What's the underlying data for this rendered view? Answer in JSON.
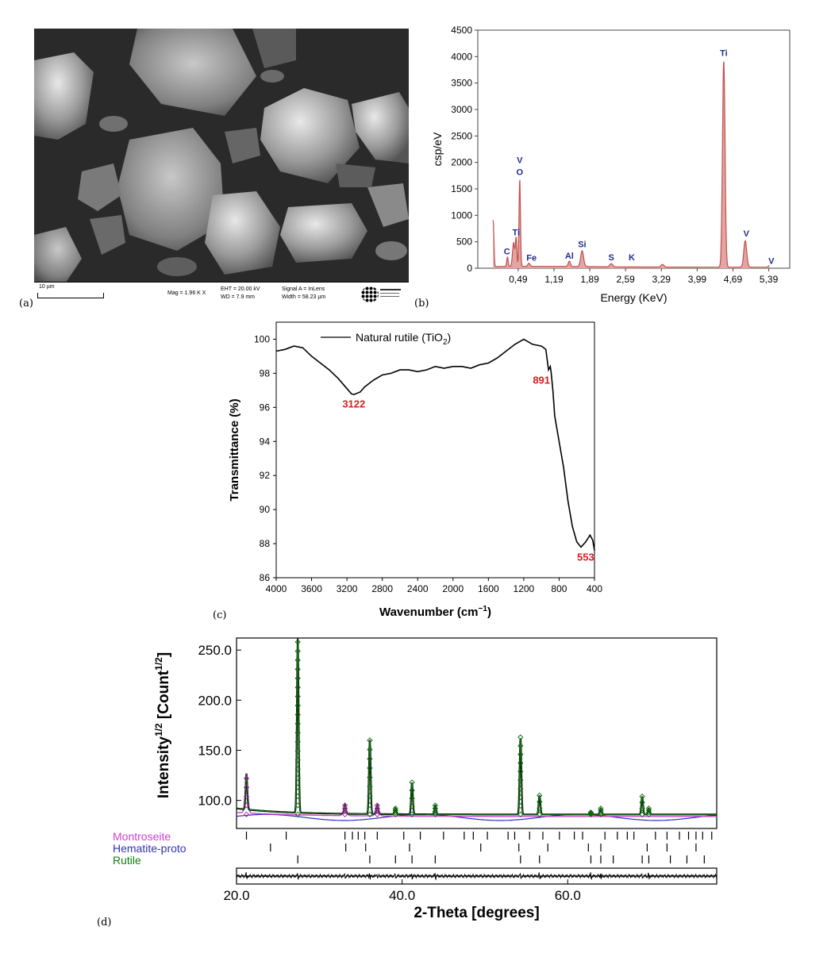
{
  "panel_labels": {
    "a": "(a)",
    "b": "(b)",
    "c": "(c)",
    "d": "(d)"
  },
  "sem": {
    "scale_label": "10 µm",
    "mag": "Mag =   1.96 K X",
    "eht": "EHT = 20.00 kV",
    "wd": "WD = 7.9 mm",
    "signal": "Signal A = InLens",
    "width": "Width = 58.23 µm"
  },
  "chart_data": [
    {
      "id": "eds",
      "type": "line",
      "xlabel": "Energy (KeV)",
      "ylabel": "csp/eV",
      "xlim": [
        -0.3,
        5.8
      ],
      "ylim": [
        0,
        4500
      ],
      "yticks": [
        0,
        500,
        1000,
        1500,
        2000,
        2500,
        3000,
        3500,
        4000,
        4500
      ],
      "xticks": [
        0.49,
        1.19,
        1.89,
        2.59,
        3.29,
        3.99,
        4.69,
        5.39
      ],
      "xtick_labels": [
        "0,49",
        "1,19",
        "1,89",
        "2,59",
        "3,29",
        "3,99",
        "4,69",
        "5,39"
      ],
      "color": "#c0504d",
      "peaks": [
        {
          "e": 0.0,
          "h": 880,
          "w": 0.02
        },
        {
          "e": 0.28,
          "h": 180,
          "w": 0.02
        },
        {
          "e": 0.4,
          "h": 450,
          "w": 0.03
        },
        {
          "e": 0.45,
          "h": 530,
          "w": 0.02
        },
        {
          "e": 0.52,
          "h": 1650,
          "w": 0.02
        },
        {
          "e": 0.7,
          "h": 60,
          "w": 0.03
        },
        {
          "e": 1.49,
          "h": 100,
          "w": 0.03
        },
        {
          "e": 1.74,
          "h": 300,
          "w": 0.04
        },
        {
          "e": 2.31,
          "h": 60,
          "w": 0.04
        },
        {
          "e": 3.31,
          "h": 50,
          "w": 0.04
        },
        {
          "e": 4.51,
          "h": 3900,
          "w": 0.035
        },
        {
          "e": 4.93,
          "h": 500,
          "w": 0.04
        },
        {
          "e": 5.43,
          "h": 60,
          "w": 0.04
        }
      ],
      "annotations": [
        {
          "text": "C",
          "e": 0.27,
          "y": 200
        },
        {
          "text": "Ti",
          "e": 0.45,
          "y": 560
        },
        {
          "text": "V",
          "e": 0.52,
          "y": 1930
        },
        {
          "text": "O",
          "e": 0.52,
          "y": 1700
        },
        {
          "text": "Fe",
          "e": 0.75,
          "y": 80
        },
        {
          "text": "Al",
          "e": 1.49,
          "y": 120
        },
        {
          "text": "Si",
          "e": 1.74,
          "y": 340
        },
        {
          "text": "S",
          "e": 2.31,
          "y": 90
        },
        {
          "text": "K",
          "e": 2.71,
          "y": 90
        },
        {
          "text": "Ti",
          "e": 4.51,
          "y": 3950
        },
        {
          "text": "V",
          "e": 4.95,
          "y": 540
        },
        {
          "text": "V",
          "e": 5.44,
          "y": 20
        }
      ]
    },
    {
      "id": "ftir",
      "type": "line",
      "xlabel": "Wavenumber (cm",
      "xlabel_sup": "−1",
      "xlabel_end": ")",
      "ylabel": "Transmittance (%)",
      "xlim": [
        4000,
        400
      ],
      "ylim": [
        86,
        101
      ],
      "xticks": [
        4000,
        3600,
        3200,
        2800,
        2400,
        2000,
        1600,
        1200,
        800,
        400
      ],
      "yticks": [
        86,
        88,
        90,
        92,
        94,
        96,
        98,
        100
      ],
      "legend": "Natural rutile (TiO",
      "legend_sub": "2",
      "legend_end": ")",
      "series": {
        "x": [
          4000,
          3900,
          3800,
          3700,
          3600,
          3500,
          3400,
          3300,
          3200,
          3150,
          3122,
          3050,
          3000,
          2900,
          2800,
          2700,
          2600,
          2500,
          2400,
          2300,
          2200,
          2100,
          2000,
          1900,
          1800,
          1700,
          1600,
          1500,
          1400,
          1300,
          1200,
          1100,
          1000,
          950,
          920,
          900,
          891,
          870,
          850,
          800,
          750,
          700,
          650,
          600,
          553,
          500,
          450,
          420,
          400
        ],
        "y": [
          99.3,
          99.4,
          99.6,
          99.5,
          99.0,
          98.6,
          98.2,
          97.7,
          97.1,
          96.8,
          96.75,
          96.9,
          97.2,
          97.6,
          97.9,
          98.0,
          98.2,
          98.2,
          98.1,
          98.2,
          98.4,
          98.3,
          98.4,
          98.4,
          98.3,
          98.5,
          98.6,
          98.9,
          99.3,
          99.7,
          100.0,
          99.7,
          99.6,
          99.4,
          98.2,
          98.4,
          98.1,
          97.0,
          95.5,
          94.0,
          92.5,
          90.5,
          89.0,
          88.1,
          87.8,
          88.1,
          88.5,
          88.2,
          87.6
        ]
      },
      "annotations": [
        {
          "text": "3122",
          "x": 3122,
          "y": 96.0
        },
        {
          "text": "891",
          "x": 1000,
          "y": 97.4
        },
        {
          "text": "553",
          "x": 500,
          "y": 87.0
        }
      ],
      "annotation_color": "#d42020"
    },
    {
      "id": "xrd",
      "type": "line",
      "xlabel": "2-Theta [degrees]",
      "ylabel": "Intensity",
      "ylabel_sup1": "1/2",
      "ylabel_mid": " [Count",
      "ylabel_sup2": "1/2",
      "ylabel_end": "]",
      "xlim": [
        20,
        78
      ],
      "ylim": [
        72,
        262
      ],
      "xticks": [
        20,
        40,
        60
      ],
      "xtick_labels": [
        "20.0",
        "40.0",
        "60.0"
      ],
      "yticks": [
        100,
        150,
        200,
        250
      ],
      "ytick_labels": [
        "100.0",
        "150.0",
        "200.0",
        "250.0"
      ],
      "background": 86,
      "peaks": [
        {
          "x": 21.2,
          "h": 122,
          "phase": "Montroseite"
        },
        {
          "x": 27.4,
          "h": 260,
          "phase": "Rutile"
        },
        {
          "x": 33.1,
          "h": 95,
          "phase": "Montroseite"
        },
        {
          "x": 36.1,
          "h": 160,
          "phase": "Rutile"
        },
        {
          "x": 37.0,
          "h": 95,
          "phase": "Montroseite"
        },
        {
          "x": 39.2,
          "h": 92,
          "phase": "Rutile"
        },
        {
          "x": 41.2,
          "h": 118,
          "phase": "Rutile"
        },
        {
          "x": 44.0,
          "h": 95,
          "phase": "Rutile"
        },
        {
          "x": 54.3,
          "h": 163,
          "phase": "Rutile"
        },
        {
          "x": 56.6,
          "h": 105,
          "phase": "Rutile"
        },
        {
          "x": 62.8,
          "h": 88,
          "phase": "Rutile"
        },
        {
          "x": 64.0,
          "h": 92,
          "phase": "Rutile"
        },
        {
          "x": 69.0,
          "h": 104,
          "phase": "Rutile"
        },
        {
          "x": 69.8,
          "h": 92,
          "phase": "Rutile"
        }
      ],
      "phases": [
        {
          "name": "Montroseite",
          "color": "#d040d0",
          "ticks": [
            21.2,
            26.0,
            33.1,
            34.0,
            34.7,
            35.5,
            37.0,
            40.2,
            42.2,
            45.0,
            47.5,
            48.6,
            50.3,
            52.8,
            53.6,
            55.4,
            57.0,
            59.0,
            60.8,
            61.8,
            64.5,
            66.0,
            67.2,
            68.0,
            70.6,
            72.0,
            73.5,
            74.6,
            75.5,
            76.3,
            77.4
          ]
        },
        {
          "name": "Hematite-proto",
          "color": "#3030c0",
          "ticks": [
            24.1,
            33.2,
            35.6,
            40.9,
            49.5,
            54.1,
            57.6,
            62.5,
            64.0,
            69.6,
            72.0,
            75.5
          ]
        },
        {
          "name": "Rutile",
          "color": "#108010",
          "ticks": [
            27.4,
            36.1,
            39.2,
            41.2,
            44.0,
            54.3,
            56.6,
            62.8,
            64.0,
            65.5,
            69.0,
            69.8,
            72.4,
            74.4,
            76.5
          ]
        }
      ]
    }
  ]
}
